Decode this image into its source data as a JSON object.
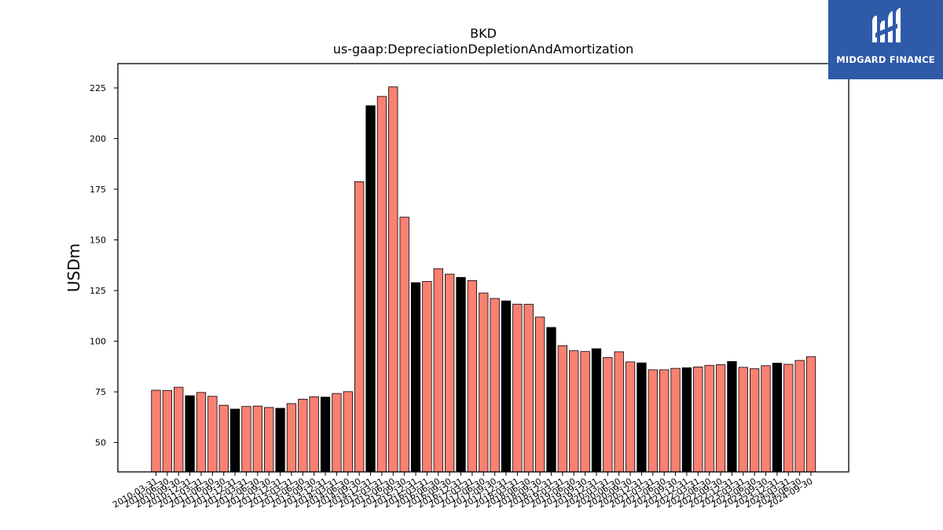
{
  "chart_data": {
    "type": "bar",
    "title": "BKD",
    "subtitle": "us-gaap:DepreciationDepletionAndAmortization",
    "xlabel": "",
    "ylabel": "USDm",
    "ylim": [
      35.5,
      237
    ],
    "yticks": [
      50,
      75,
      100,
      125,
      150,
      175,
      200,
      225
    ],
    "grid": false,
    "legend": "none",
    "colors": {
      "quarter": "#fa8072",
      "year_end": "#000000",
      "edge": "#000000"
    },
    "categories": [
      "2010-03-31",
      "2010-06-30",
      "2010-09-30",
      "2010-12-31",
      "2011-03-31",
      "2011-06-30",
      "2011-09-30",
      "2011-12-31",
      "2012-03-31",
      "2012-06-30",
      "2012-09-30",
      "2012-12-31",
      "2013-03-31",
      "2013-06-30",
      "2013-09-30",
      "2013-12-31",
      "2014-03-31",
      "2014-06-30",
      "2014-09-30",
      "2014-12-31",
      "2015-03-31",
      "2015-06-30",
      "2015-09-30",
      "2015-12-31",
      "2016-03-31",
      "2016-06-30",
      "2016-09-30",
      "2016-12-31",
      "2017-03-31",
      "2017-06-30",
      "2017-09-30",
      "2017-12-31",
      "2018-03-31",
      "2018-06-30",
      "2018-09-30",
      "2018-12-31",
      "2019-03-31",
      "2019-06-30",
      "2019-09-30",
      "2019-12-31",
      "2020-03-31",
      "2020-06-30",
      "2020-09-30",
      "2020-12-31",
      "2021-03-31",
      "2021-06-30",
      "2021-09-30",
      "2021-12-31",
      "2022-03-31",
      "2022-06-30",
      "2022-09-30",
      "2022-12-31",
      "2023-03-31",
      "2023-06-30",
      "2023-09-30",
      "2023-12-31",
      "2024-03-31",
      "2024-06-30",
      "2024-09-30"
    ],
    "values": [
      75.8,
      75.7,
      77.3,
      73.1,
      74.7,
      72.8,
      68.4,
      66.5,
      67.8,
      68.0,
      67.3,
      66.9,
      69.2,
      71.4,
      72.6,
      72.4,
      74.2,
      75.1,
      178.7,
      216.2,
      220.8,
      225.5,
      161.2,
      128.9,
      129.5,
      135.8,
      133.1,
      131.5,
      129.9,
      123.8,
      121.1,
      119.9,
      118.3,
      118.2,
      111.9,
      106.8,
      97.8,
      95.3,
      94.9,
      96.3,
      91.9,
      94.8,
      89.8,
      89.3,
      85.9,
      85.9,
      86.6,
      86.9,
      87.3,
      88.1,
      88.4,
      90.0,
      87.1,
      86.4,
      87.9,
      89.2,
      88.6,
      90.5,
      92.4
    ],
    "year_end": [
      false,
      false,
      false,
      true,
      false,
      false,
      false,
      true,
      false,
      false,
      false,
      true,
      false,
      false,
      false,
      true,
      false,
      false,
      false,
      true,
      false,
      false,
      false,
      true,
      false,
      false,
      false,
      true,
      false,
      false,
      false,
      true,
      false,
      false,
      false,
      true,
      false,
      false,
      false,
      true,
      false,
      false,
      false,
      true,
      false,
      false,
      false,
      true,
      false,
      false,
      false,
      true,
      false,
      false,
      false,
      true,
      false,
      false,
      false
    ]
  },
  "logo": {
    "text": "MIDGARD FINANCE"
  }
}
